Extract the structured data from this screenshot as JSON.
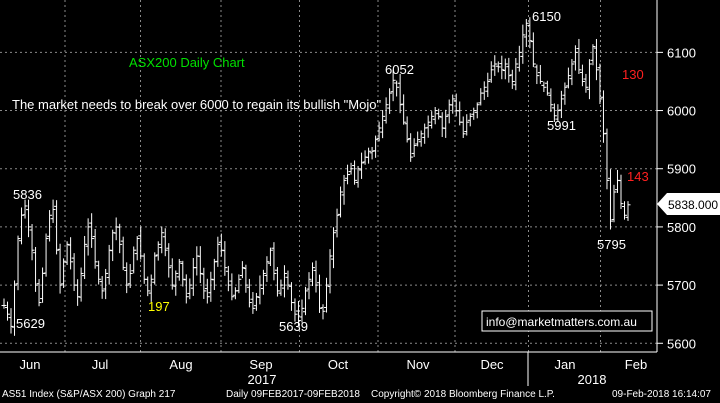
{
  "chart_data": {
    "type": "ohlc",
    "title": "ASX200 Daily Chart",
    "annotation": "The market needs to break over 6000 to regain its bullish \"Mojo\"",
    "ylim": [
      5585,
      6190
    ],
    "y_ticks": [
      5600,
      5700,
      5800,
      5900,
      6000,
      6100
    ],
    "y_tick_labels": [
      "5600",
      "5700",
      "5800",
      "5900",
      "6000",
      "6100"
    ],
    "x_months": [
      "Jun",
      "Jul",
      "Aug",
      "Sep",
      "Oct",
      "Nov",
      "Dec",
      "Jan",
      "Feb"
    ],
    "x_years": [
      "2017",
      "2018"
    ],
    "last_value": "5838.000",
    "grid": true,
    "price_labels": [
      {
        "text": "5836",
        "value": 5836,
        "color": "#ffffff"
      },
      {
        "text": "5629",
        "value": 5629,
        "color": "#ffffff"
      },
      {
        "text": "197",
        "value": 197,
        "color": "#ffff00"
      },
      {
        "text": "5639",
        "value": 5639,
        "color": "#ffffff"
      },
      {
        "text": "6052",
        "value": 6052,
        "color": "#ffffff"
      },
      {
        "text": "6150",
        "value": 6150,
        "color": "#ffffff"
      },
      {
        "text": "5991",
        "value": 5991,
        "color": "#ffffff"
      },
      {
        "text": "130",
        "value": 130,
        "color": "#ff2020"
      },
      {
        "text": "143",
        "value": 143,
        "color": "#ff2020"
      },
      {
        "text": "5795",
        "value": 5795,
        "color": "#ffffff"
      }
    ],
    "watermark": "info@marketmatters.com.au",
    "close_path": [
      5665,
      5650,
      5629,
      5700,
      5780,
      5820,
      5836,
      5800,
      5760,
      5700,
      5670,
      5720,
      5780,
      5820,
      5830,
      5760,
      5700,
      5740,
      5770,
      5740,
      5700,
      5680,
      5720,
      5770,
      5800,
      5780,
      5740,
      5710,
      5690,
      5720,
      5760,
      5790,
      5800,
      5770,
      5730,
      5700,
      5720,
      5760,
      5780,
      5750,
      5710,
      5690,
      5710,
      5750,
      5770,
      5790,
      5760,
      5730,
      5700,
      5720,
      5740,
      5710,
      5680,
      5700,
      5730,
      5750,
      5720,
      5690,
      5680,
      5710,
      5740,
      5770,
      5760,
      5730,
      5700,
      5680,
      5690,
      5710,
      5730,
      5700,
      5670,
      5660,
      5680,
      5700,
      5720,
      5740,
      5760,
      5720,
      5690,
      5700,
      5720,
      5700,
      5670,
      5650,
      5639,
      5660,
      5690,
      5710,
      5730,
      5700,
      5660,
      5655,
      5700,
      5750,
      5790,
      5820,
      5860,
      5880,
      5890,
      5900,
      5880,
      5900,
      5910,
      5920,
      5930,
      5930,
      5950,
      5970,
      5990,
      6010,
      6030,
      6052,
      6040,
      6010,
      5980,
      5950,
      5920,
      5940,
      5950,
      5960,
      5970,
      5980,
      5990,
      6000,
      5990,
      5970,
      5990,
      6010,
      6020,
      6000,
      5980,
      5960,
      5980,
      5990,
      6000,
      6010,
      6030,
      6040,
      6050,
      6070,
      6080,
      6075,
      6070,
      6080,
      6060,
      6050,
      6080,
      6100,
      6130,
      6150,
      6120,
      6080,
      6060,
      6050,
      6040,
      6030,
      6010,
      5991,
      6000,
      6020,
      6040,
      6060,
      6080,
      6100,
      6070,
      6050,
      6040,
      6080,
      6110,
      6070,
      6020,
      5960,
      5880,
      5810,
      5860,
      5880,
      5840,
      5820,
      5838
    ]
  },
  "footer": {
    "left": "AS51 Index (S&P/ASX 200) Graph 217",
    "range": "Daily 09FEB2017-09FEB2018",
    "copyright": "Copyright© 2018 Bloomberg Finance L.P.",
    "timestamp": "09-Feb-2018 16:14:07"
  }
}
